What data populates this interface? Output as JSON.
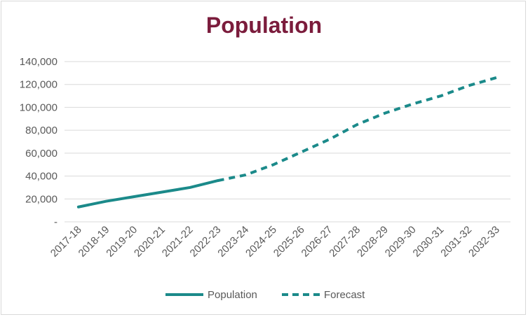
{
  "chart_data": {
    "type": "line",
    "title": "Population",
    "xlabel": "",
    "ylabel": "",
    "categories": [
      "2017-18",
      "2018-19",
      "2019-20",
      "2020-21",
      "2021-22",
      "2022-23",
      "2023-24",
      "2024-25",
      "2025-26",
      "2026-27",
      "2027-28",
      "2028-29",
      "2029-30",
      "2030-31",
      "2031-32",
      "2032-33"
    ],
    "y_ticks": [
      "-",
      "20,000",
      "40,000",
      "60,000",
      "80,000",
      "100,000",
      "120,000",
      "140,000"
    ],
    "ylim": [
      0,
      140000
    ],
    "grid": true,
    "legend_position": "bottom",
    "series": [
      {
        "name": "Population",
        "style": "solid",
        "color": "#1b8a8a",
        "values": [
          13000,
          18000,
          22000,
          26000,
          30000,
          36000,
          null,
          null,
          null,
          null,
          null,
          null,
          null,
          null,
          null,
          null
        ]
      },
      {
        "name": "Forecast",
        "style": "dashed",
        "color": "#1b8a8a",
        "values": [
          null,
          null,
          null,
          null,
          null,
          36000,
          41000,
          50000,
          61000,
          72000,
          85000,
          95000,
          103000,
          110000,
          119000,
          126000
        ]
      }
    ]
  }
}
